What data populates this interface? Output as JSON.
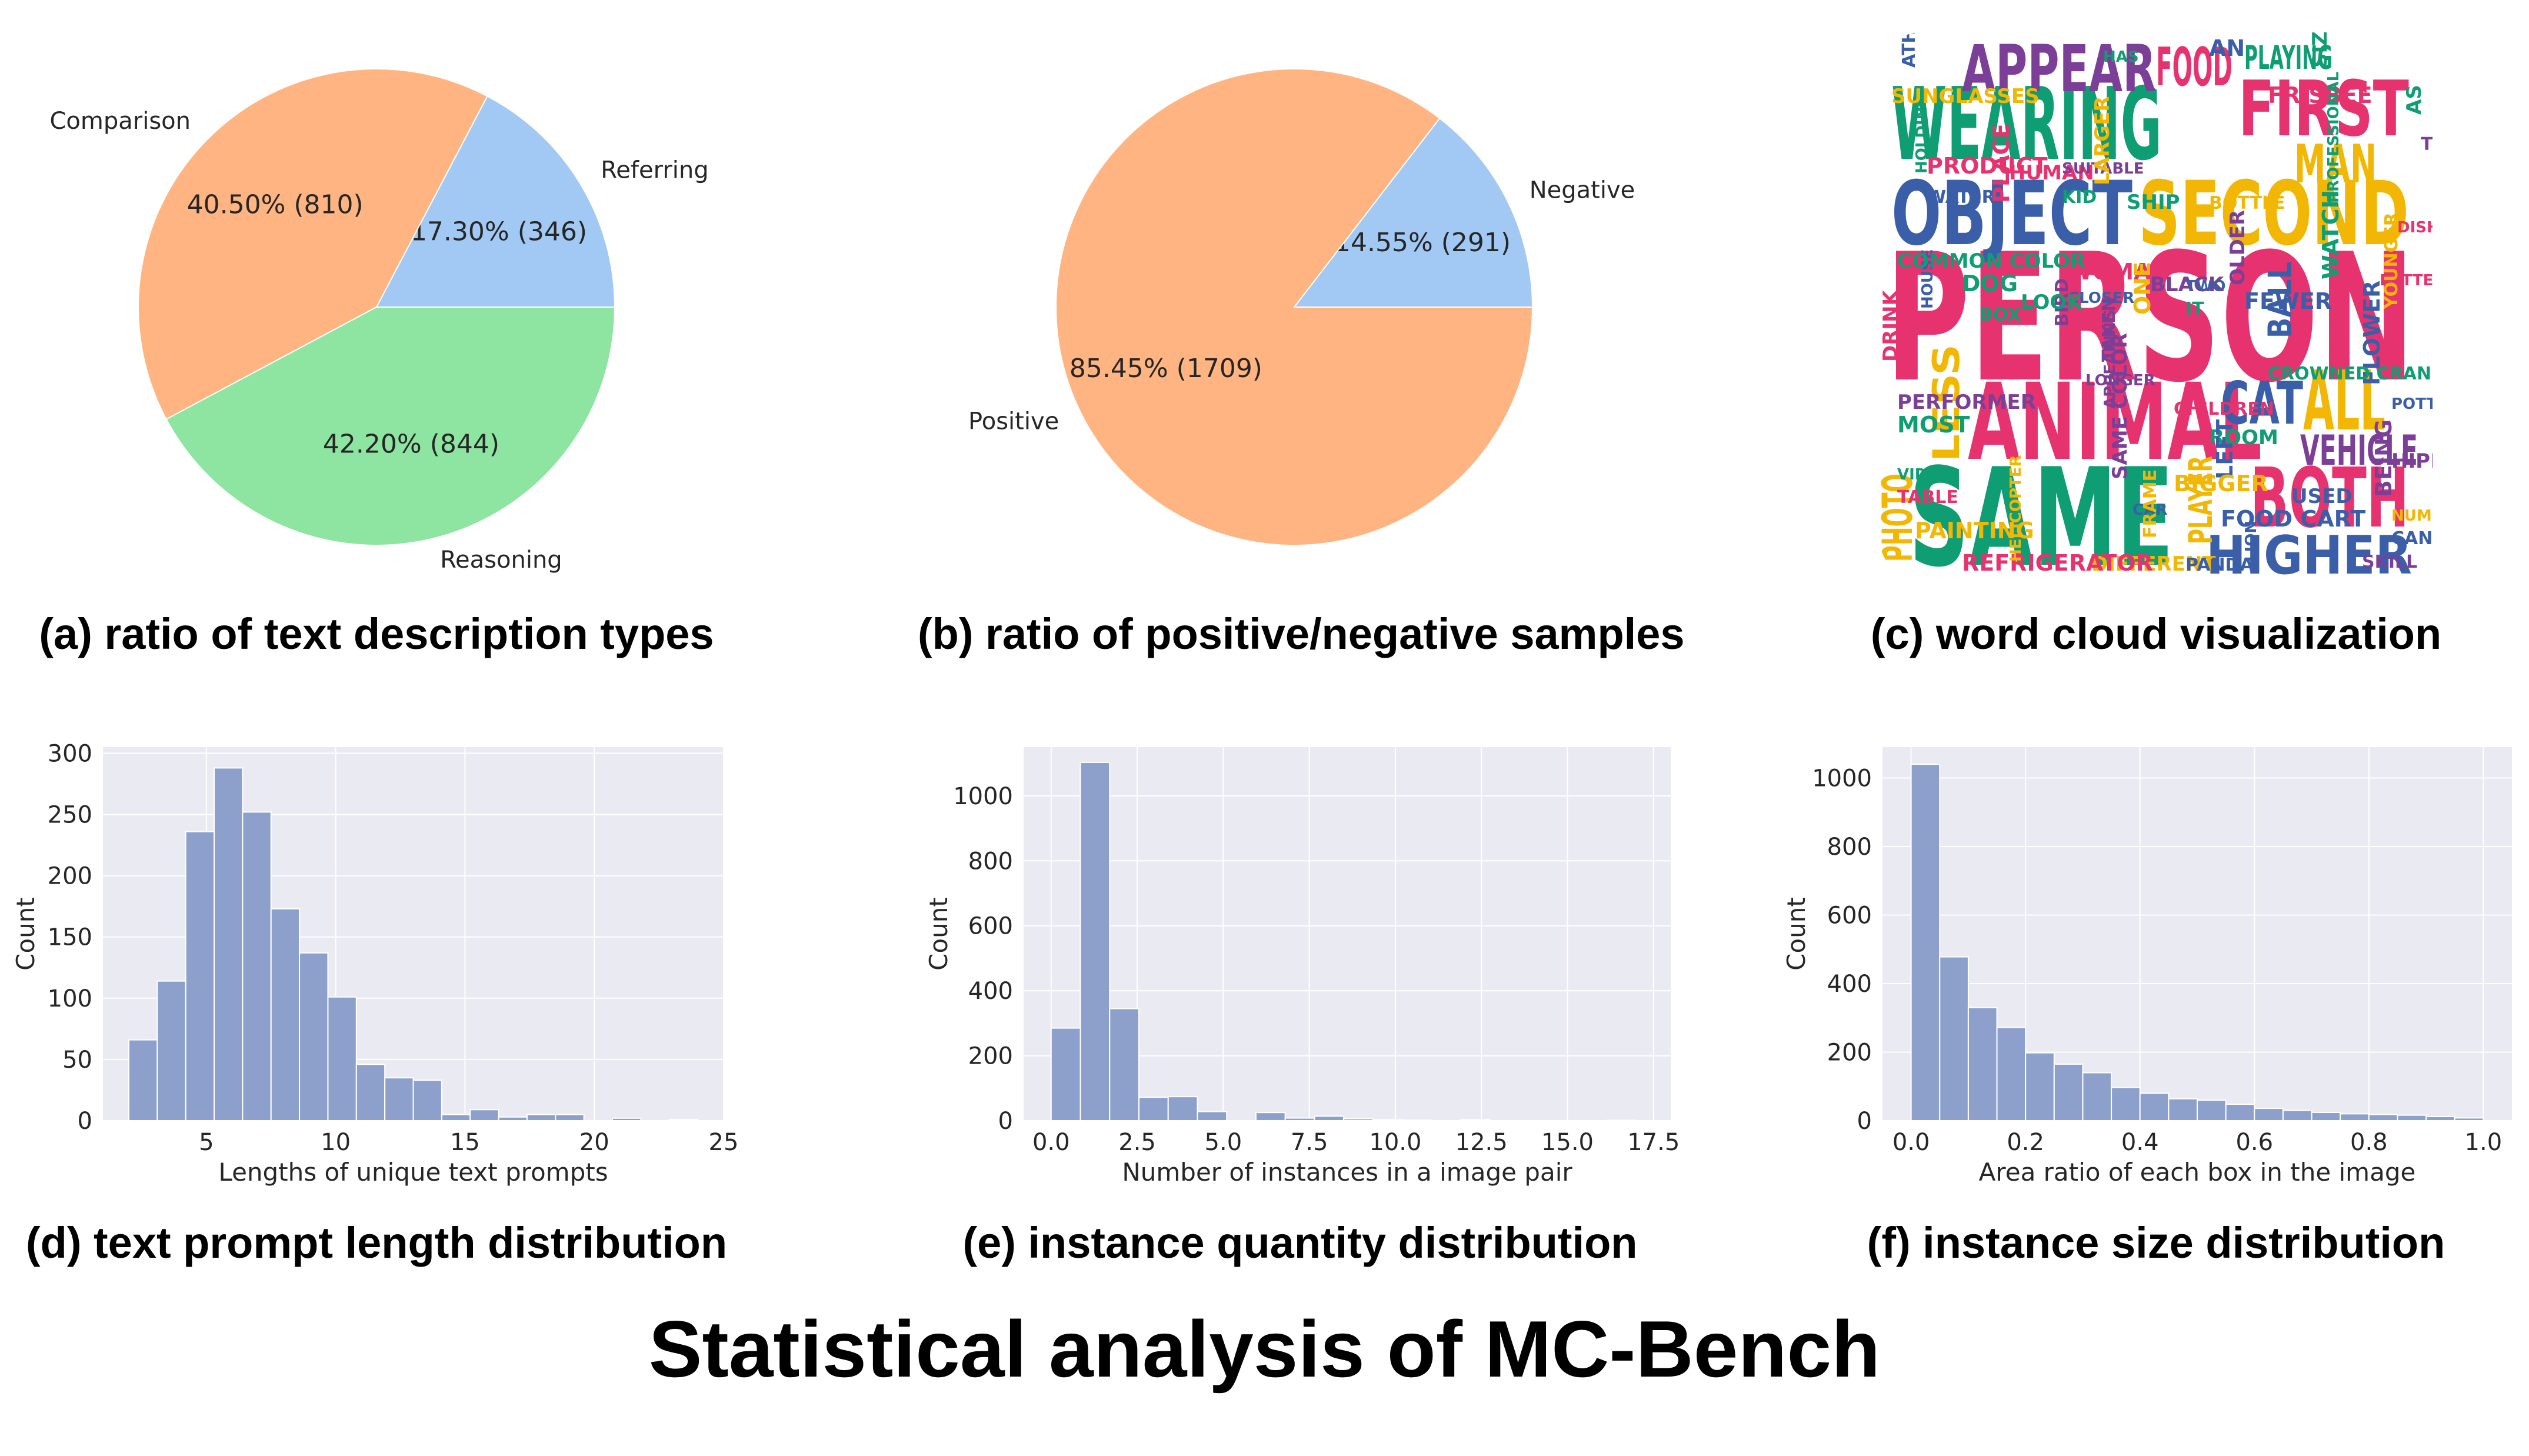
{
  "colors": {
    "pie_blue": "#a1c9f4",
    "pie_orange": "#ffb482",
    "pie_green": "#8de5a1",
    "hist_bar": "#8da0cb",
    "plot_bg": "#eaeaf2",
    "wc_pink": "#e6336f",
    "wc_green": "#0f9d74",
    "wc_blue": "#3a5fa8",
    "wc_yellow": "#f2b705",
    "wc_purple": "#7b3f98"
  },
  "captions": {
    "a": "(a) ratio of text description types",
    "b": "(b) ratio of positive/negative samples",
    "c": "(c) word cloud visualization",
    "d": "(d) text prompt length distribution",
    "e": "(e) instance quantity distribution",
    "f": "(f) instance size distribution"
  },
  "main_title": "Statistical analysis of MC-Bench",
  "wordcloud": {
    "words": [
      {
        "text": "PERSON",
        "color": "wc_pink"
      },
      {
        "text": "SAME",
        "color": "wc_green"
      },
      {
        "text": "WEARING",
        "color": "wc_green"
      },
      {
        "text": "ANIMAL",
        "color": "wc_pink"
      },
      {
        "text": "OBJECT",
        "color": "wc_blue"
      },
      {
        "text": "SECOND",
        "color": "wc_yellow"
      },
      {
        "text": "APPEAR",
        "color": "wc_purple"
      },
      {
        "text": "FIRST",
        "color": "wc_pink"
      },
      {
        "text": "FOOD",
        "color": "wc_pink"
      },
      {
        "text": "BOTH",
        "color": "wc_pink"
      },
      {
        "text": "HIGHER",
        "color": "wc_blue"
      },
      {
        "text": "CAT",
        "color": "wc_blue"
      },
      {
        "text": "ALL",
        "color": "wc_yellow"
      },
      {
        "text": "MAN",
        "color": "wc_yellow"
      },
      {
        "text": "VEHICLE",
        "color": "wc_purple"
      },
      {
        "text": "LESS",
        "color": "wc_yellow"
      },
      {
        "text": "PLAYING",
        "color": "wc_green"
      },
      {
        "text": "PHOTO",
        "color": "wc_yellow"
      },
      {
        "text": "PLAYER",
        "color": "wc_yellow"
      },
      {
        "text": "BALL",
        "color": "wc_blue"
      },
      {
        "text": "HOLDING",
        "color": "wc_green"
      },
      {
        "text": "WATER",
        "color": "wc_blue"
      },
      {
        "text": "HUMAN",
        "color": "wc_pink"
      },
      {
        "text": "PLACE",
        "color": "wc_pink"
      },
      {
        "text": "SUITABLE",
        "color": "wc_purple"
      },
      {
        "text": "KID",
        "color": "wc_green"
      },
      {
        "text": "LARGER",
        "color": "wc_yellow"
      },
      {
        "text": "WOMAN",
        "color": "wc_pink"
      },
      {
        "text": "CLOSER",
        "color": "wc_blue"
      },
      {
        "text": "BIRD",
        "color": "wc_purple"
      },
      {
        "text": "LOOK",
        "color": "wc_green"
      },
      {
        "text": "DOG",
        "color": "wc_green"
      },
      {
        "text": "HOUSE",
        "color": "wc_blue"
      },
      {
        "text": "BOX",
        "color": "wc_green"
      },
      {
        "text": "BLACK",
        "color": "wc_purple"
      },
      {
        "text": "ONE",
        "color": "wc_yellow"
      },
      {
        "text": "TWO",
        "color": "wc_blue"
      },
      {
        "text": "IT",
        "color": "wc_green"
      },
      {
        "text": "OLDER",
        "color": "wc_purple"
      },
      {
        "text": "FEWER",
        "color": "wc_blue"
      },
      {
        "text": "BETTER",
        "color": "wc_pink"
      },
      {
        "text": "YOUNGER",
        "color": "wc_yellow"
      },
      {
        "text": "PERFORMER",
        "color": "wc_purple"
      },
      {
        "text": "MOST",
        "color": "wc_green"
      },
      {
        "text": "APPEARING",
        "color": "wc_purple"
      },
      {
        "text": "CHILDREN",
        "color": "wc_pink"
      },
      {
        "text": "ROOM",
        "color": "wc_green"
      },
      {
        "text": "LEFT",
        "color": "wc_blue"
      },
      {
        "text": "VIDEO",
        "color": "wc_green"
      },
      {
        "text": "TABLE",
        "color": "wc_pink"
      },
      {
        "text": "SAME COLOR",
        "color": "wc_purple"
      },
      {
        "text": "BIGGER",
        "color": "wc_yellow"
      },
      {
        "text": "CAR",
        "color": "wc_blue"
      },
      {
        "text": "FRAME",
        "color": "wc_yellow"
      },
      {
        "text": "DIFFERENT",
        "color": "wc_yellow"
      },
      {
        "text": "REFRIGERATOR",
        "color": "wc_pink"
      },
      {
        "text": "HELICOPTER",
        "color": "wc_yellow"
      },
      {
        "text": "PANDA",
        "color": "wc_blue"
      },
      {
        "text": "HIPPO",
        "color": "wc_purple"
      },
      {
        "text": "BEING",
        "color": "wc_purple"
      },
      {
        "text": "NUMBER",
        "color": "wc_yellow"
      },
      {
        "text": "CAN",
        "color": "wc_blue"
      },
      {
        "text": "SIZE",
        "color": "wc_green"
      },
      {
        "text": "AN",
        "color": "wc_blue"
      },
      {
        "text": "HAS",
        "color": "wc_green"
      },
      {
        "text": "ATHLETE",
        "color": "wc_blue"
      },
      {
        "text": "SUNGLASSES",
        "color": "wc_yellow"
      },
      {
        "text": "FRISBEE",
        "color": "wc_pink"
      },
      {
        "text": "PROFESSIONAL",
        "color": "wc_green"
      },
      {
        "text": "BOTTLE",
        "color": "wc_yellow"
      },
      {
        "text": "SHIP",
        "color": "wc_green"
      },
      {
        "text": "FLOWER",
        "color": "wc_blue"
      },
      {
        "text": "POTTED PLANT",
        "color": "wc_blue"
      },
      {
        "text": "CROWNED CRANE",
        "color": "wc_green"
      },
      {
        "text": "DRINK",
        "color": "wc_pink"
      },
      {
        "text": "PAINTING",
        "color": "wc_yellow"
      },
      {
        "text": "LONGER",
        "color": "wc_purple"
      },
      {
        "text": "TAKEN",
        "color": "wc_purple"
      },
      {
        "text": "USED",
        "color": "wc_blue"
      },
      {
        "text": "FOOD CART",
        "color": "wc_blue"
      },
      {
        "text": "LION",
        "color": "wc_blue"
      },
      {
        "text": "SKILL",
        "color": "wc_purple"
      },
      {
        "text": "COMMON COLOR",
        "color": "wc_green"
      },
      {
        "text": "WATCH",
        "color": "wc_green"
      },
      {
        "text": "DISH",
        "color": "wc_pink"
      },
      {
        "text": "THEIR",
        "color": "wc_purple"
      },
      {
        "text": "AS",
        "color": "wc_green"
      },
      {
        "text": "PRODUCT",
        "color": "wc_pink"
      }
    ]
  },
  "chart_data": [
    {
      "id": "a",
      "type": "pie",
      "slices": [
        {
          "label": "Referring",
          "pct": 17.3,
          "count": 346,
          "pct_text": "17.30%  (346)",
          "color": "pie_blue"
        },
        {
          "label": "Comparison",
          "pct": 40.5,
          "count": 810,
          "pct_text": "40.50%  (810)",
          "color": "pie_orange"
        },
        {
          "label": "Reasoning",
          "pct": 42.2,
          "count": 844,
          "pct_text": "42.20%  (844)",
          "color": "pie_green"
        }
      ]
    },
    {
      "id": "b",
      "type": "pie",
      "slices": [
        {
          "label": "Negative",
          "pct": 14.55,
          "count": 291,
          "pct_text": "14.55%  (291)",
          "color": "pie_blue"
        },
        {
          "label": "Positive",
          "pct": 85.45,
          "count": 1709,
          "pct_text": "85.45%  (1709)",
          "color": "pie_orange"
        }
      ]
    },
    {
      "id": "d",
      "type": "bar",
      "xlabel": "Lengths of unique text prompts",
      "ylabel": "Count",
      "xlim": [
        1,
        25
      ],
      "ylim": [
        0,
        305
      ],
      "xticks": [
        5,
        10,
        15,
        20,
        25
      ],
      "yticks": [
        0,
        50,
        100,
        150,
        200,
        250,
        300
      ],
      "bins": [
        {
          "x0": 2.0,
          "x1": 3.1,
          "count": 66
        },
        {
          "x0": 3.1,
          "x1": 4.2,
          "count": 114
        },
        {
          "x0": 4.2,
          "x1": 5.3,
          "count": 236
        },
        {
          "x0": 5.3,
          "x1": 6.4,
          "count": 288
        },
        {
          "x0": 6.4,
          "x1": 7.5,
          "count": 252
        },
        {
          "x0": 7.5,
          "x1": 8.6,
          "count": 173
        },
        {
          "x0": 8.6,
          "x1": 9.7,
          "count": 137
        },
        {
          "x0": 9.7,
          "x1": 10.8,
          "count": 101
        },
        {
          "x0": 10.8,
          "x1": 11.9,
          "count": 46
        },
        {
          "x0": 11.9,
          "x1": 13.0,
          "count": 35
        },
        {
          "x0": 13.0,
          "x1": 14.1,
          "count": 33
        },
        {
          "x0": 14.1,
          "x1": 15.2,
          "count": 5
        },
        {
          "x0": 15.2,
          "x1": 16.3,
          "count": 9
        },
        {
          "x0": 16.3,
          "x1": 17.4,
          "count": 3
        },
        {
          "x0": 17.4,
          "x1": 18.5,
          "count": 5
        },
        {
          "x0": 18.5,
          "x1": 19.6,
          "count": 5
        },
        {
          "x0": 19.6,
          "x1": 20.7,
          "count": 0
        },
        {
          "x0": 20.7,
          "x1": 21.8,
          "count": 2
        },
        {
          "x0": 21.8,
          "x1": 22.9,
          "count": 0
        },
        {
          "x0": 22.9,
          "x1": 24.0,
          "count": 1
        }
      ]
    },
    {
      "id": "e",
      "type": "bar",
      "xlabel": "Number of instances in a image pair",
      "ylabel": "Count",
      "xlim": [
        -0.8,
        18.0
      ],
      "ylim": [
        0,
        1150
      ],
      "xticks": [
        0.0,
        2.5,
        5.0,
        7.5,
        10.0,
        12.5,
        15.0,
        17.5
      ],
      "xtick_labels": [
        "0.0",
        "2.5",
        "5.0",
        "7.5",
        "10.0",
        "12.5",
        "15.0",
        "17.5"
      ],
      "yticks": [
        0,
        200,
        400,
        600,
        800,
        1000
      ],
      "bins": [
        {
          "x0": 0.0,
          "x1": 0.85,
          "count": 285
        },
        {
          "x0": 0.85,
          "x1": 1.7,
          "count": 1103
        },
        {
          "x0": 1.7,
          "x1": 2.55,
          "count": 345
        },
        {
          "x0": 2.55,
          "x1": 3.4,
          "count": 72
        },
        {
          "x0": 3.4,
          "x1": 4.25,
          "count": 74
        },
        {
          "x0": 4.25,
          "x1": 5.1,
          "count": 28
        },
        {
          "x0": 5.1,
          "x1": 5.95,
          "count": 0
        },
        {
          "x0": 5.95,
          "x1": 6.8,
          "count": 25
        },
        {
          "x0": 6.8,
          "x1": 7.65,
          "count": 8
        },
        {
          "x0": 7.65,
          "x1": 8.5,
          "count": 14
        },
        {
          "x0": 8.5,
          "x1": 9.35,
          "count": 6
        },
        {
          "x0": 9.35,
          "x1": 10.2,
          "count": 3
        },
        {
          "x0": 10.2,
          "x1": 11.05,
          "count": 2
        },
        {
          "x0": 11.05,
          "x1": 11.9,
          "count": 0
        },
        {
          "x0": 11.9,
          "x1": 12.75,
          "count": 3
        },
        {
          "x0": 12.75,
          "x1": 13.6,
          "count": 0
        },
        {
          "x0": 13.6,
          "x1": 14.45,
          "count": 0
        },
        {
          "x0": 14.45,
          "x1": 15.3,
          "count": 0
        },
        {
          "x0": 15.3,
          "x1": 16.15,
          "count": 0
        },
        {
          "x0": 16.15,
          "x1": 17.0,
          "count": 1
        }
      ]
    },
    {
      "id": "f",
      "type": "bar",
      "xlabel": "Area ratio of each box in the image",
      "ylabel": "Count",
      "xlim": [
        -0.05,
        1.05
      ],
      "ylim": [
        0,
        1090
      ],
      "xticks": [
        0.0,
        0.2,
        0.4,
        0.6,
        0.8,
        1.0
      ],
      "xtick_labels": [
        "0.0",
        "0.2",
        "0.4",
        "0.6",
        "0.8",
        "1.0"
      ],
      "yticks": [
        0,
        200,
        400,
        600,
        800,
        1000
      ],
      "bins": [
        {
          "x0": 0.0,
          "x1": 0.05,
          "count": 1040
        },
        {
          "x0": 0.05,
          "x1": 0.1,
          "count": 478
        },
        {
          "x0": 0.1,
          "x1": 0.15,
          "count": 330
        },
        {
          "x0": 0.15,
          "x1": 0.2,
          "count": 272
        },
        {
          "x0": 0.2,
          "x1": 0.25,
          "count": 198
        },
        {
          "x0": 0.25,
          "x1": 0.3,
          "count": 165
        },
        {
          "x0": 0.3,
          "x1": 0.35,
          "count": 140
        },
        {
          "x0": 0.35,
          "x1": 0.4,
          "count": 97
        },
        {
          "x0": 0.4,
          "x1": 0.45,
          "count": 80
        },
        {
          "x0": 0.45,
          "x1": 0.5,
          "count": 64
        },
        {
          "x0": 0.5,
          "x1": 0.55,
          "count": 60
        },
        {
          "x0": 0.55,
          "x1": 0.6,
          "count": 48
        },
        {
          "x0": 0.6,
          "x1": 0.65,
          "count": 36
        },
        {
          "x0": 0.65,
          "x1": 0.7,
          "count": 30
        },
        {
          "x0": 0.7,
          "x1": 0.75,
          "count": 24
        },
        {
          "x0": 0.75,
          "x1": 0.8,
          "count": 20
        },
        {
          "x0": 0.8,
          "x1": 0.85,
          "count": 18
        },
        {
          "x0": 0.85,
          "x1": 0.9,
          "count": 16
        },
        {
          "x0": 0.9,
          "x1": 0.95,
          "count": 12
        },
        {
          "x0": 0.95,
          "x1": 1.0,
          "count": 8
        }
      ]
    }
  ]
}
